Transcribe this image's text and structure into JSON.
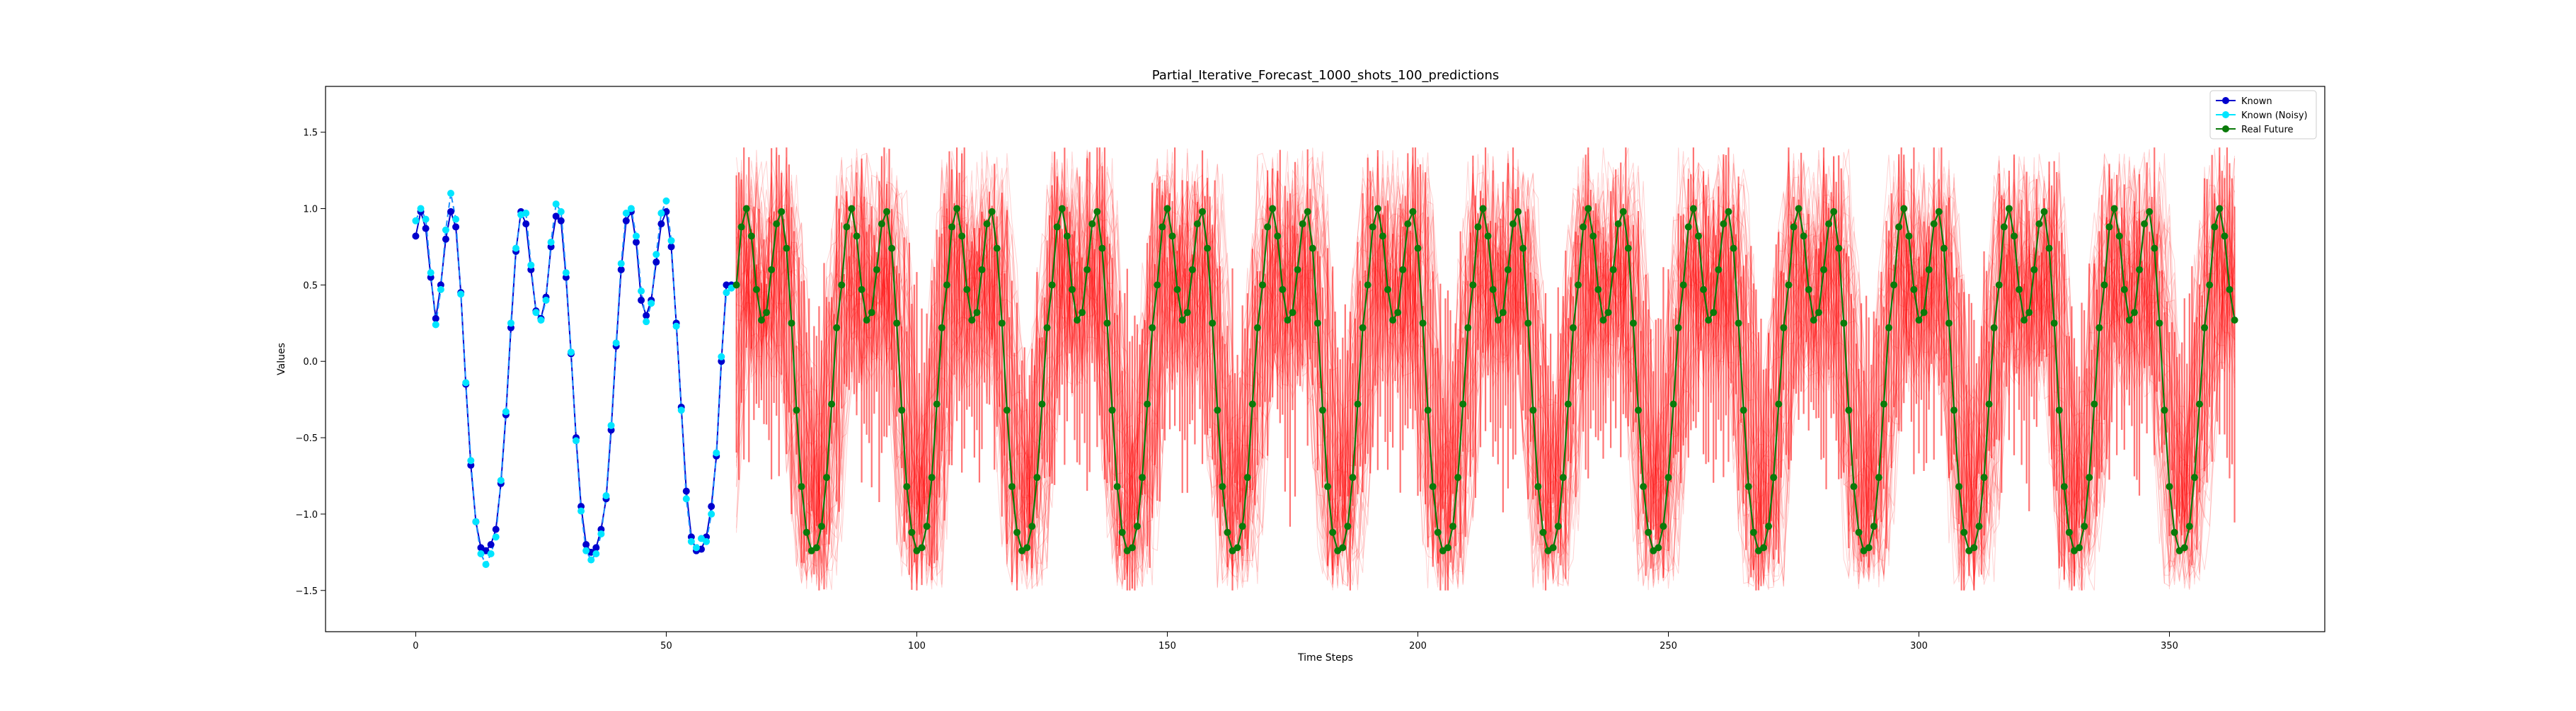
{
  "chart_data": {
    "type": "line",
    "title": "Partial_Iterative_Forecast_1000_shots_100_predictions",
    "xlabel": "Time Steps",
    "ylabel": "Values",
    "xlim": [
      -18,
      381
    ],
    "ylim": [
      -1.77,
      1.8
    ],
    "x_ticks": [
      0,
      50,
      100,
      150,
      200,
      250,
      300,
      350
    ],
    "y_ticks": [
      -1.5,
      -1.0,
      -0.5,
      0.0,
      0.5,
      1.0,
      1.5
    ],
    "x_tick_labels": [
      "0",
      "50",
      "100",
      "150",
      "200",
      "250",
      "300",
      "350"
    ],
    "y_tick_labels": [
      "−1.5",
      "−1.0",
      "−0.5",
      "0.0",
      "0.5",
      "1.0",
      "1.5"
    ],
    "grid": false,
    "legend_position": "top-right",
    "legend": [
      {
        "label": "Known",
        "color": "#0000cd"
      },
      {
        "label": "Known (Noisy)",
        "color": "#00e5ff"
      },
      {
        "label": "Real Future",
        "color": "#0a7a0a"
      }
    ],
    "colors": {
      "known": "#0000cd",
      "known_noisy": "#00e5ff",
      "known_line": "#1e90ff",
      "real_future": "#0a7a0a",
      "forecast": "#ff0000"
    },
    "series": [
      {
        "name": "Known",
        "x": [
          0,
          1,
          2,
          3,
          4,
          5,
          6,
          7,
          8,
          9,
          10,
          11,
          12,
          13,
          14,
          15,
          16,
          17,
          18,
          19,
          20,
          21,
          22,
          23,
          24,
          25,
          26,
          27,
          28,
          29,
          30,
          31,
          32,
          33,
          34,
          35,
          36,
          37,
          38,
          39,
          40,
          41,
          42,
          43,
          44,
          45,
          46,
          47,
          48,
          49,
          50,
          51,
          52,
          53,
          54,
          55,
          56,
          57,
          58,
          59,
          60,
          61,
          62,
          63,
          64
        ],
        "values": [
          0.82,
          0.98,
          0.87,
          0.55,
          0.28,
          0.5,
          0.8,
          0.98,
          0.88,
          0.45,
          -0.15,
          -0.68,
          -1.05,
          -1.22,
          -1.24,
          -1.2,
          -1.1,
          -0.8,
          -0.35,
          0.22,
          0.72,
          0.98,
          0.9,
          0.6,
          0.33,
          0.28,
          0.42,
          0.75,
          0.95,
          0.92,
          0.55,
          0.05,
          -0.5,
          -0.95,
          -1.2,
          -1.25,
          -1.22,
          -1.1,
          -0.9,
          -0.45,
          0.1,
          0.6,
          0.92,
          0.98,
          0.78,
          0.4,
          0.3,
          0.4,
          0.65,
          0.9,
          0.98,
          0.75,
          0.25,
          -0.3,
          -0.85,
          -1.15,
          -1.24,
          -1.23,
          -1.15,
          -0.95,
          -0.62,
          0.0,
          0.5,
          0.5,
          0.5
        ]
      },
      {
        "name": "Known (Noisy)",
        "x": [
          0,
          1,
          2,
          3,
          4,
          5,
          6,
          7,
          8,
          9,
          10,
          11,
          12,
          13,
          14,
          15,
          16,
          17,
          18,
          19,
          20,
          21,
          22,
          23,
          24,
          25,
          26,
          27,
          28,
          29,
          30,
          31,
          32,
          33,
          34,
          35,
          36,
          37,
          38,
          39,
          40,
          41,
          42,
          43,
          44,
          45,
          46,
          47,
          48,
          49,
          50,
          51,
          52,
          53,
          54,
          55,
          56,
          57,
          58,
          59,
          60,
          61,
          62,
          63,
          64
        ],
        "values": [
          0.92,
          1.0,
          0.93,
          0.58,
          0.24,
          0.47,
          0.86,
          1.1,
          0.93,
          0.44,
          -0.14,
          -0.65,
          -1.05,
          -1.26,
          -1.33,
          -1.26,
          -1.15,
          -0.78,
          -0.33,
          0.25,
          0.74,
          0.96,
          0.97,
          0.63,
          0.32,
          0.27,
          0.4,
          0.78,
          1.03,
          0.98,
          0.58,
          0.06,
          -0.52,
          -0.98,
          -1.24,
          -1.3,
          -1.26,
          -1.13,
          -0.88,
          -0.42,
          0.12,
          0.64,
          0.97,
          1.0,
          0.82,
          0.46,
          0.26,
          0.38,
          0.7,
          0.97,
          1.05,
          0.79,
          0.23,
          -0.32,
          -0.9,
          -1.18,
          -1.22,
          -1.16,
          -1.18,
          -1.0,
          -0.6,
          0.03,
          0.45,
          0.48,
          0.5
        ]
      },
      {
        "name": "Real Future",
        "x0": 64,
        "period": 21,
        "count": 300,
        "pattern": [
          0.5,
          0.88,
          1.0,
          0.82,
          0.47,
          0.27,
          0.32,
          0.6,
          0.9,
          0.98,
          0.74,
          0.25,
          -0.32,
          -0.82,
          -1.12,
          -1.24,
          -1.22,
          -1.08,
          -0.76,
          -0.28,
          0.22
        ]
      }
    ],
    "forecast": {
      "x_start": 64,
      "x_end": 363,
      "samples": 1000,
      "amplitude_max": 1.4,
      "amplitude_min": -1.5
    }
  }
}
